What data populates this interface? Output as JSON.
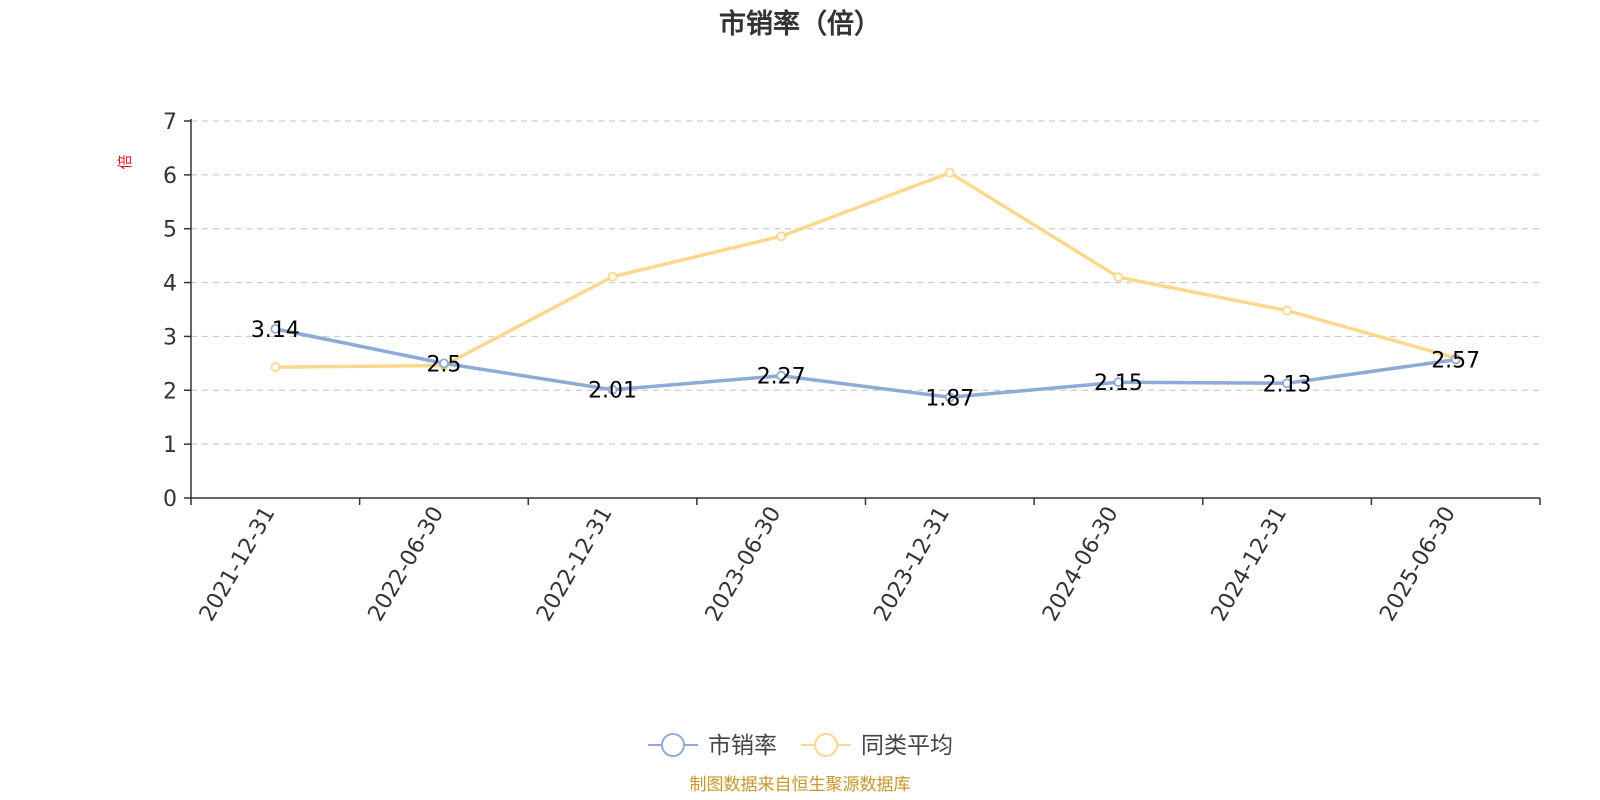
{
  "chart_data": {
    "type": "line",
    "title": "市销率（倍）",
    "ylabel": "倍",
    "xlabel": "",
    "categories": [
      "2021-12-31",
      "2022-06-30",
      "2022-12-31",
      "2023-06-30",
      "2023-12-31",
      "2024-06-30",
      "2024-12-31",
      "2025-06-30"
    ],
    "series": [
      {
        "name": "市销率",
        "values": [
          3.14,
          2.5,
          2.01,
          2.27,
          1.87,
          2.15,
          2.13,
          2.57
        ],
        "color": "#8eaad6",
        "labels": true
      },
      {
        "name": "同类平均",
        "values": [
          2.43,
          2.46,
          4.11,
          4.86,
          6.04,
          4.1,
          3.48,
          2.6
        ],
        "color": "#fbd88e",
        "labels": false
      }
    ],
    "ylim": [
      0,
      7
    ],
    "yticks": [
      0,
      1,
      2,
      3,
      4,
      5,
      6,
      7
    ],
    "grid": true,
    "legend_position": "bottom-center"
  },
  "footer": {
    "source": "制图数据来自恒生聚源数据库"
  },
  "colors": {
    "title": "#333333",
    "axis": "#333333",
    "grid": "#cccccc",
    "ylabel": "#e0191e",
    "footer": "#c7962b",
    "legend_text": "#444444"
  }
}
